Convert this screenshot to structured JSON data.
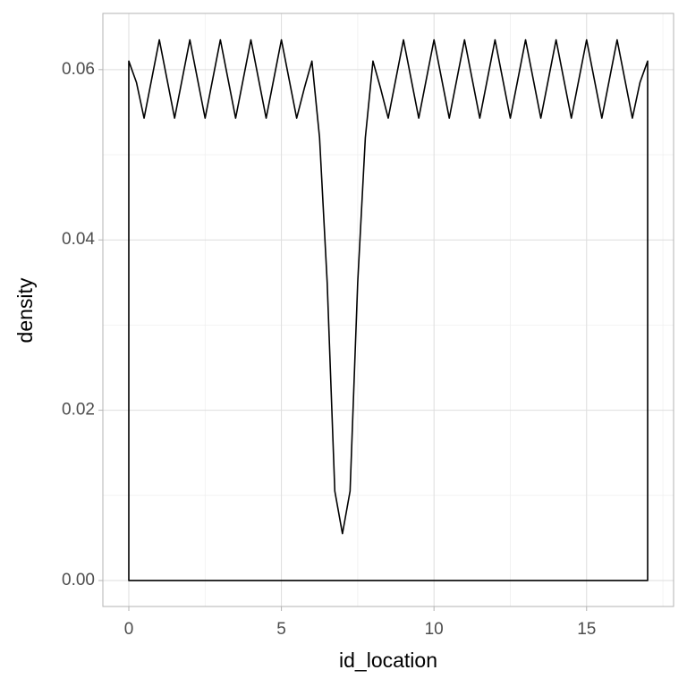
{
  "chart_data": {
    "type": "density",
    "x_label": "id_location",
    "y_label": "density",
    "x": [
      0,
      0,
      0.25,
      0.5,
      0.75,
      1,
      1.25,
      1.5,
      1.75,
      2,
      2.25,
      2.5,
      2.75,
      3,
      3.25,
      3.5,
      3.75,
      4,
      4.25,
      4.5,
      4.75,
      5,
      5.25,
      5.5,
      5.75,
      6,
      6.25,
      6.5,
      6.75,
      7,
      7.25,
      7.5,
      7.75,
      8,
      8.25,
      8.5,
      8.75,
      9,
      9.25,
      9.5,
      9.75,
      10,
      10.25,
      10.5,
      10.75,
      11,
      11.25,
      11.5,
      11.75,
      12,
      12.25,
      12.5,
      12.75,
      13,
      13.25,
      13.5,
      13.75,
      14,
      14.25,
      14.5,
      14.75,
      15,
      15.25,
      15.5,
      15.75,
      16,
      16.25,
      16.5,
      16.75,
      17,
      17
    ],
    "values": [
      0,
      0.061,
      0.0585,
      0.0543,
      0.0589,
      0.0635,
      0.0589,
      0.0543,
      0.0589,
      0.0635,
      0.0589,
      0.0543,
      0.0589,
      0.0635,
      0.0589,
      0.0543,
      0.0589,
      0.0635,
      0.0589,
      0.0543,
      0.0589,
      0.0635,
      0.0589,
      0.0543,
      0.0578,
      0.061,
      0.052,
      0.035,
      0.0105,
      0.0055,
      0.0105,
      0.035,
      0.052,
      0.061,
      0.0578,
      0.0543,
      0.0589,
      0.0635,
      0.0589,
      0.0543,
      0.0589,
      0.0635,
      0.0589,
      0.0543,
      0.0589,
      0.0635,
      0.0589,
      0.0543,
      0.0589,
      0.0635,
      0.0589,
      0.0543,
      0.0589,
      0.0635,
      0.0589,
      0.0543,
      0.0589,
      0.0635,
      0.0589,
      0.0543,
      0.0589,
      0.0635,
      0.0589,
      0.0543,
      0.0589,
      0.0635,
      0.0589,
      0.0543,
      0.0585,
      0.061,
      0
    ],
    "color": "#000000",
    "xlim": [
      -0.85,
      17.85
    ],
    "ylim": [
      -0.00305,
      0.0666
    ],
    "xticks": [
      0,
      5,
      10,
      15
    ],
    "yticks": [
      {
        "value": 0,
        "label": "0.00"
      },
      {
        "value": 0.02,
        "label": "0.02"
      },
      {
        "value": 0.04,
        "label": "0.04"
      },
      {
        "value": 0.06,
        "label": "0.06"
      }
    ],
    "x_minor_grid": [
      2.5,
      7.5,
      12.5,
      17.5
    ],
    "y_minor_grid": [
      0.01,
      0.03,
      0.05
    ],
    "grid": true
  }
}
